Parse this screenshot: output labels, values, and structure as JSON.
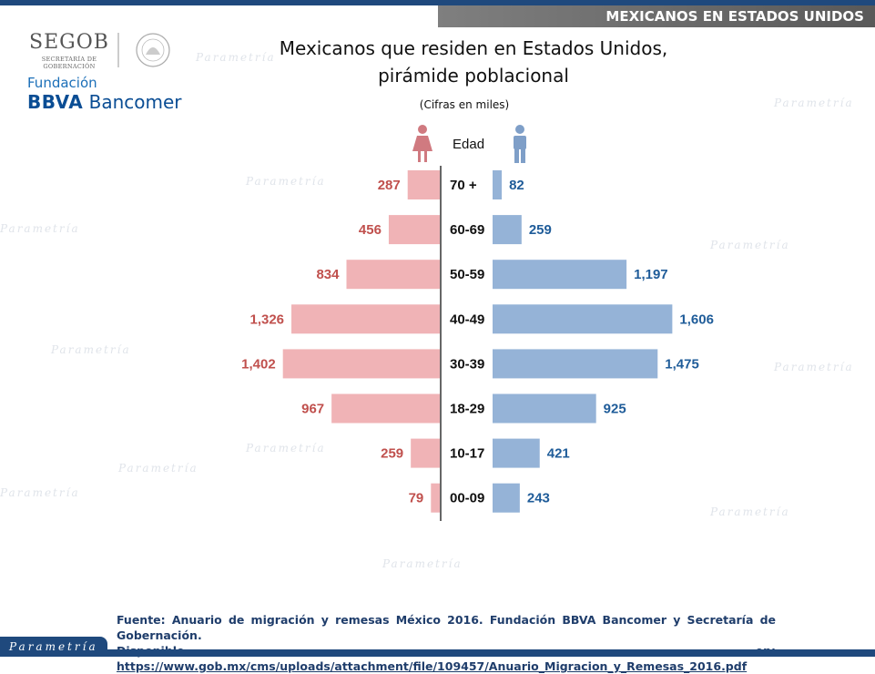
{
  "header": {
    "banner": "MEXICANOS EN ESTADOS UNIDOS"
  },
  "logos": {
    "segob_name": "SEGOB",
    "segob_sub": "SECRETARÍA DE GOBERNACIÓN",
    "bbva_fundacion": "Fundación",
    "bbva_name_bold": "BBVA",
    "bbva_name_rest": " Bancomer"
  },
  "watermark": "Parametría",
  "chart_data": {
    "type": "bar",
    "title_line1": "Mexicanos que residen en Estados Unidos,",
    "title_line2": "pirámide poblacional",
    "subtitle": "(Cifras en miles)",
    "axis_label": "Edad",
    "categories": [
      "70 +",
      "60-69",
      "50-59",
      "40-49",
      "30-39",
      "18-29",
      "10-17",
      "00-09"
    ],
    "series": [
      {
        "key": "women",
        "values": [
          287,
          456,
          834,
          1326,
          1402,
          967,
          259,
          79
        ],
        "labels": [
          "287",
          "456",
          "834",
          "1,326",
          "1,402",
          "967",
          "259",
          "79"
        ]
      },
      {
        "key": "men",
        "values": [
          82,
          259,
          1197,
          1606,
          1475,
          925,
          421,
          243
        ],
        "labels": [
          "82",
          "259",
          "1,197",
          "1,606",
          "1,475",
          "925",
          "421",
          "243"
        ]
      }
    ],
    "colors": {
      "women_bar": "#f0b3b6",
      "women_label": "#c0504d",
      "men_bar": "#95b3d7",
      "men_label": "#1f5c99"
    },
    "icons": {
      "women": "woman-icon",
      "men": "man-icon"
    }
  },
  "source": {
    "line1": "Fuente: Anuario de migración y remesas México 2016. Fundación BBVA Bancomer y Secretaría de Gobernación.",
    "line2_prefix": "Disponible en: ",
    "url": "https://www.gob.mx/cms/uploads/attachment/file/109457/Anuario_Migracion_y_Remesas_2016.pdf"
  },
  "footer": {
    "brand": "Parametría"
  }
}
